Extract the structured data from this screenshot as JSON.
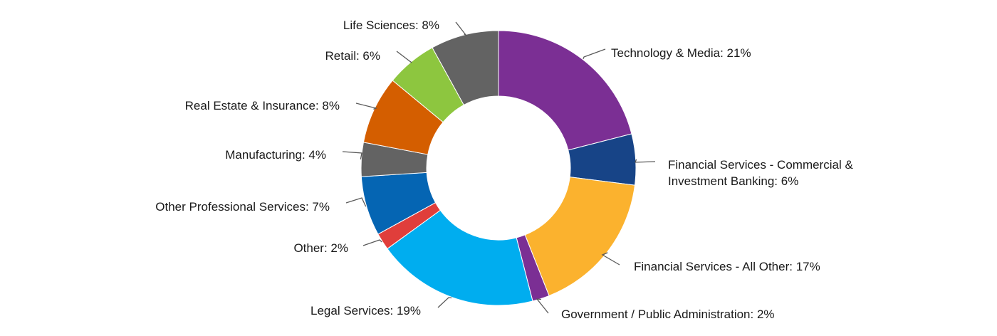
{
  "chart_data": {
    "type": "pie",
    "title": "",
    "donut": true,
    "unit": "%",
    "slices": [
      {
        "label": "Technology & Media: 21%",
        "value": 21,
        "color": "#7b2f94"
      },
      {
        "label": "Financial Services - Commercial & Investment Banking: 6%",
        "lines": [
          "Financial Services - Commercial &",
          "Investment Banking: 6%"
        ],
        "value": 6,
        "color": "#174487"
      },
      {
        "label": "Financial Services - All Other: 17%",
        "value": 17,
        "color": "#fbb22e"
      },
      {
        "label": "Government / Public Administration: 2%",
        "value": 2,
        "color": "#7b2f94"
      },
      {
        "label": "Legal Services: 19%",
        "value": 19,
        "color": "#00adef"
      },
      {
        "label": "Other: 2%",
        "value": 2,
        "color": "#e03e3b"
      },
      {
        "label": "Other Professional Services: 7%",
        "value": 7,
        "color": "#0565b3"
      },
      {
        "label": "Manufacturing: 4%",
        "value": 4,
        "color": "#636363"
      },
      {
        "label": "Real Estate & Insurance: 8%",
        "value": 8,
        "color": "#d45e00"
      },
      {
        "label": "Retail: 6%",
        "value": 6,
        "color": "#8dc63f"
      },
      {
        "label": "Life Sciences: 8%",
        "value": 8,
        "color": "#636363"
      }
    ]
  }
}
